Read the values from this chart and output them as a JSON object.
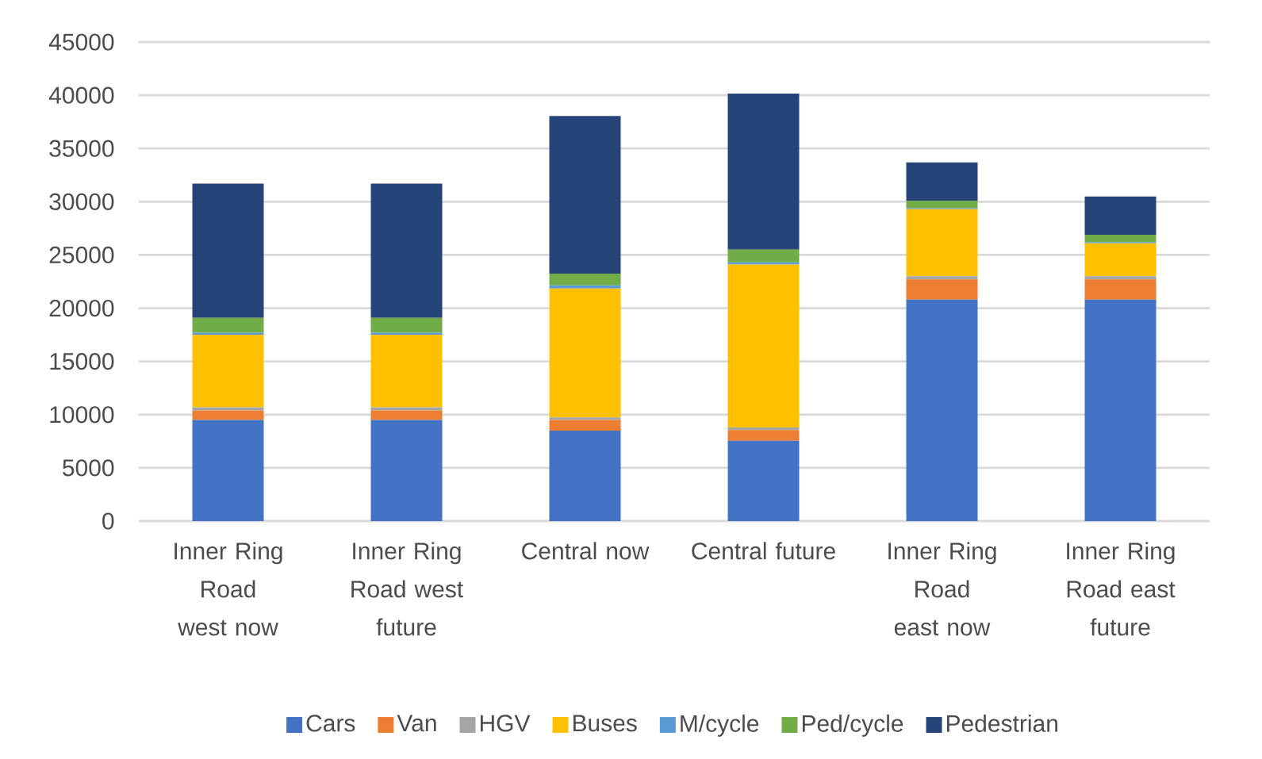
{
  "chart_data": {
    "type": "bar",
    "stacked": true,
    "categories": [
      "Inner Ring Road west now",
      "Inner Ring Road west future",
      "Central now",
      "Central future",
      "Inner Ring Road east now",
      "Inner Ring Road east future"
    ],
    "series": [
      {
        "name": "Cars",
        "color": "#4472c4",
        "values": [
          9500,
          9500,
          8500,
          7550,
          20800,
          20800
        ]
      },
      {
        "name": "Van",
        "color": "#ed7d31",
        "values": [
          900,
          900,
          1000,
          1000,
          1900,
          1900
        ]
      },
      {
        "name": "HGV",
        "color": "#a5a5a5",
        "values": [
          300,
          300,
          250,
          250,
          300,
          300
        ]
      },
      {
        "name": "Buses",
        "color": "#ffc000",
        "values": [
          6800,
          6800,
          12100,
          15300,
          6300,
          3100
        ]
      },
      {
        "name": "M/cycle",
        "color": "#5b9bd5",
        "values": [
          200,
          200,
          300,
          200,
          100,
          100
        ]
      },
      {
        "name": "Ped/cycle",
        "color": "#70ad47",
        "values": [
          1400,
          1400,
          1100,
          1200,
          700,
          700
        ]
      },
      {
        "name": "Pedestrian",
        "color": "#264478",
        "values": [
          12600,
          12600,
          14800,
          14650,
          3600,
          3600
        ]
      }
    ],
    "ylim": [
      0,
      45000
    ],
    "yticks": [
      0,
      5000,
      10000,
      15000,
      20000,
      25000,
      30000,
      35000,
      40000,
      45000
    ],
    "grid": "y",
    "legend": "bottom"
  }
}
